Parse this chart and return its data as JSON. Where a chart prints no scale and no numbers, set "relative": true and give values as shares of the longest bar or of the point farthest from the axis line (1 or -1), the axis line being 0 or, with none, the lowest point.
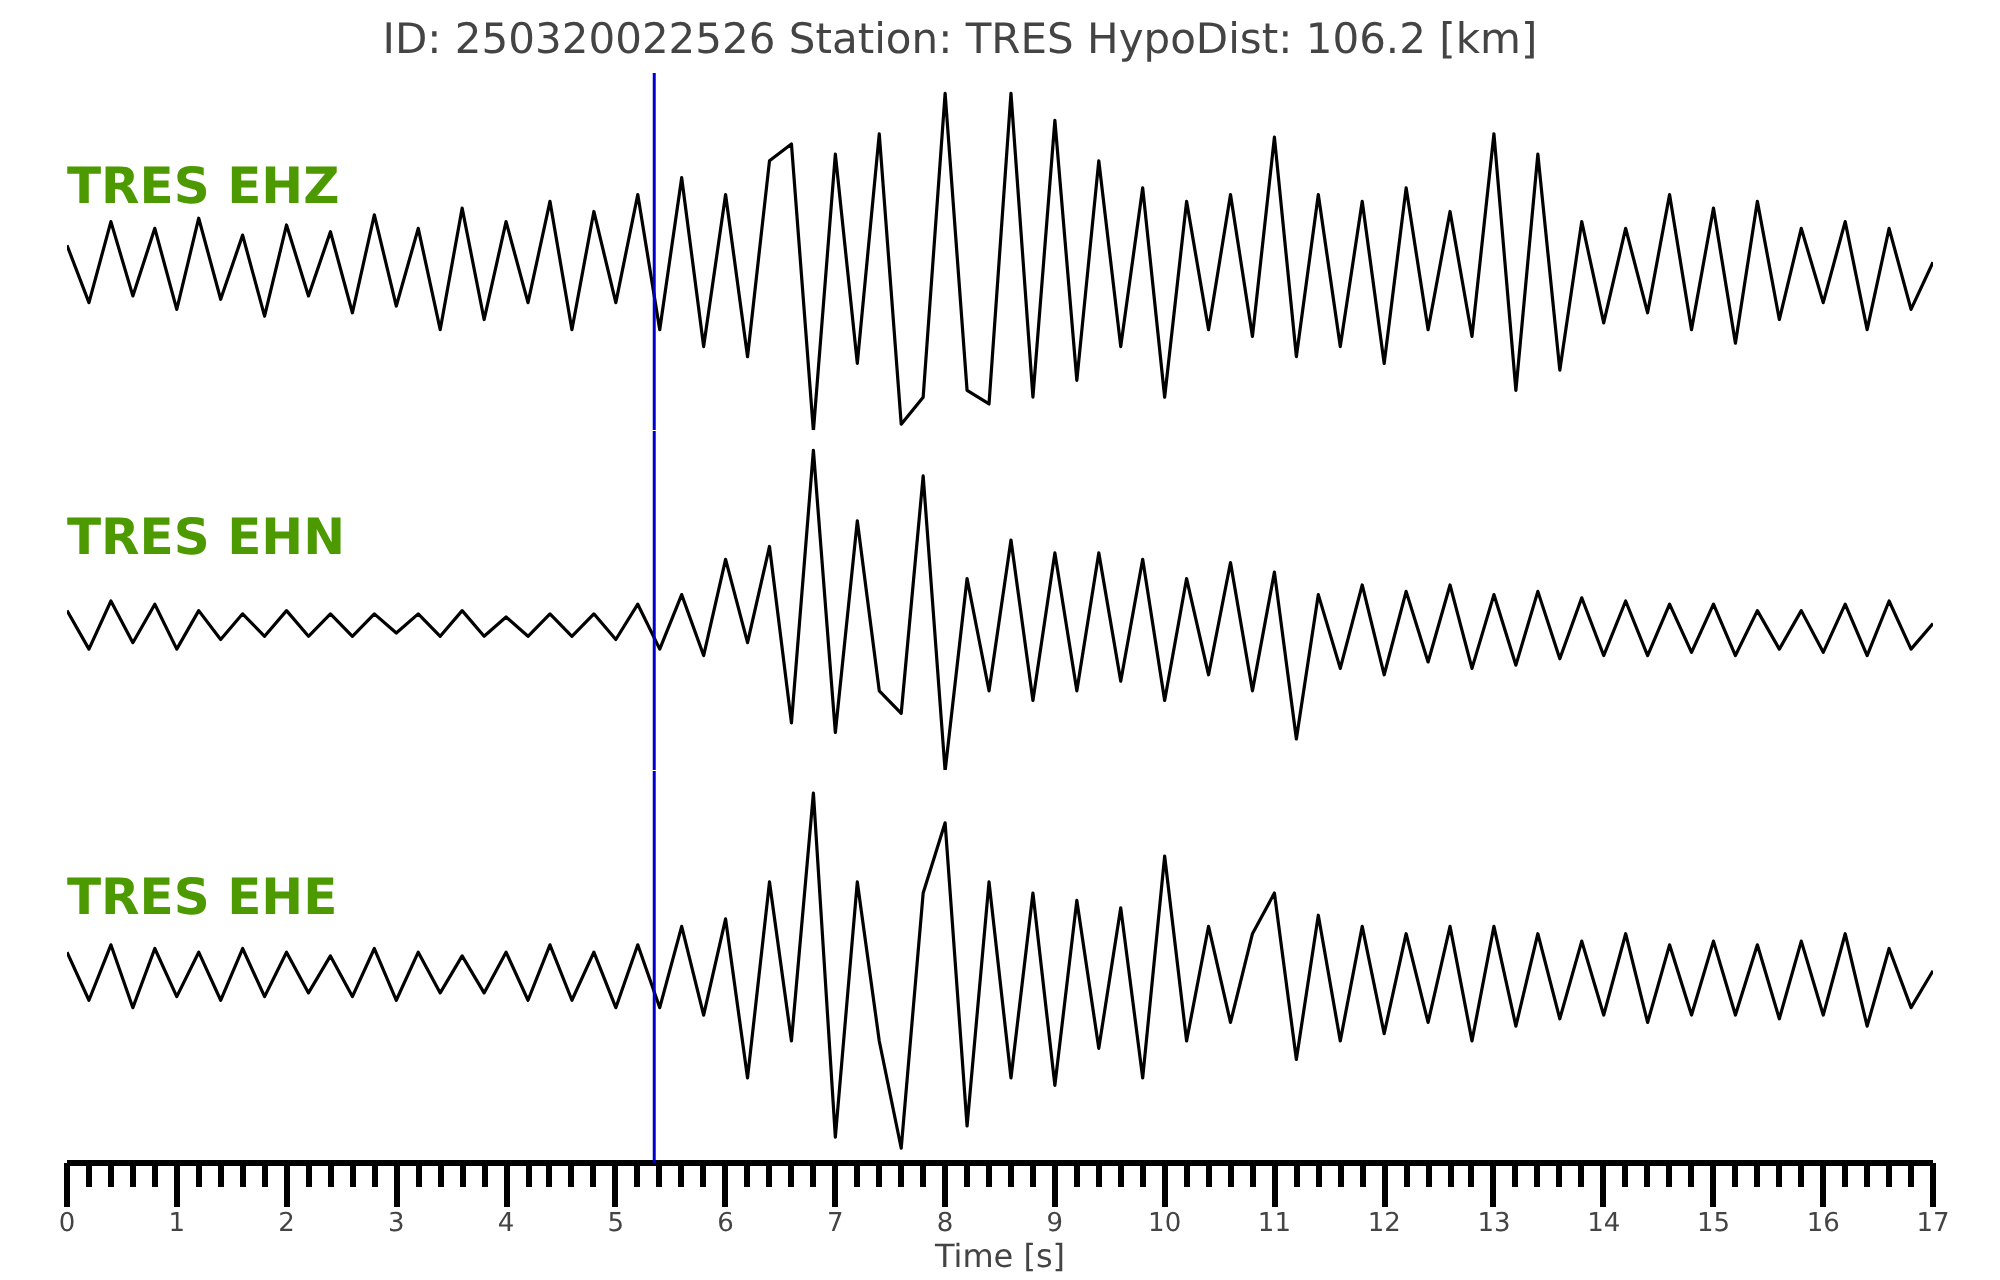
{
  "chart_data": [
    {
      "type": "line",
      "relative": true,
      "title": "ID: 250320022526   Station: TRES   HypoDist:   106.2 [km]",
      "xlim": [
        0,
        17
      ],
      "tick_labels": false,
      "ref_lines": [
        {
          "axis": "x",
          "value": 5.35,
          "color": "#0000cc"
        }
      ],
      "x": [
        0,
        0.2,
        0.4,
        0.6,
        0.8,
        1.0,
        1.2,
        1.4,
        1.6,
        1.8,
        2.0,
        2.2,
        2.4,
        2.6,
        2.8,
        3.0,
        3.2,
        3.4,
        3.6,
        3.8,
        4.0,
        4.2,
        4.4,
        4.6,
        4.8,
        5.0,
        5.2,
        5.4,
        5.6,
        5.8,
        6.0,
        6.2,
        6.4,
        6.6,
        6.8,
        7.0,
        7.2,
        7.4,
        7.6,
        7.8,
        8.0,
        8.2,
        8.4,
        8.6,
        8.8,
        9.0,
        9.2,
        9.4,
        9.6,
        9.8,
        10.0,
        10.2,
        10.4,
        10.6,
        10.8,
        11.0,
        11.2,
        11.4,
        11.6,
        11.8,
        12.0,
        12.2,
        12.4,
        12.6,
        12.8,
        13.0,
        13.2,
        13.4,
        13.6,
        13.8,
        14.0,
        14.2,
        14.4,
        14.6,
        14.8,
        15.0,
        15.2,
        15.4,
        15.6,
        15.8,
        16.0,
        16.2,
        16.4,
        16.6,
        16.8,
        17.0
      ],
      "series": [
        {
          "name": "TRES EHZ",
          "color": "#000000",
          "values": [
            0.55,
            0.38,
            0.62,
            0.4,
            0.6,
            0.36,
            0.63,
            0.39,
            0.58,
            0.34,
            0.61,
            0.4,
            0.59,
            0.35,
            0.64,
            0.37,
            0.6,
            0.3,
            0.66,
            0.33,
            0.62,
            0.38,
            0.68,
            0.3,
            0.65,
            0.38,
            0.7,
            0.3,
            0.75,
            0.25,
            0.7,
            0.22,
            0.8,
            0.85,
            0.0,
            0.82,
            0.2,
            0.88,
            0.02,
            0.1,
            1.0,
            0.12,
            0.08,
            1.0,
            0.1,
            0.92,
            0.15,
            0.8,
            0.25,
            0.72,
            0.1,
            0.68,
            0.3,
            0.7,
            0.28,
            0.87,
            0.22,
            0.7,
            0.25,
            0.68,
            0.2,
            0.72,
            0.3,
            0.65,
            0.28,
            0.88,
            0.12,
            0.82,
            0.18,
            0.62,
            0.32,
            0.6,
            0.35,
            0.7,
            0.3,
            0.66,
            0.26,
            0.68,
            0.33,
            0.6,
            0.38,
            0.62,
            0.3,
            0.6,
            0.36,
            0.5
          ]
        }
      ]
    },
    {
      "type": "line",
      "relative": true,
      "xlim": [
        0,
        17
      ],
      "tick_labels": false,
      "ref_lines": [
        {
          "axis": "x",
          "value": 5.35,
          "color": "#0000cc"
        }
      ],
      "x": [
        0,
        0.2,
        0.4,
        0.6,
        0.8,
        1.0,
        1.2,
        1.4,
        1.6,
        1.8,
        2.0,
        2.2,
        2.4,
        2.6,
        2.8,
        3.0,
        3.2,
        3.4,
        3.6,
        3.8,
        4.0,
        4.2,
        4.4,
        4.6,
        4.8,
        5.0,
        5.2,
        5.4,
        5.6,
        5.8,
        6.0,
        6.2,
        6.4,
        6.6,
        6.8,
        7.0,
        7.2,
        7.4,
        7.6,
        7.8,
        8.0,
        8.2,
        8.4,
        8.6,
        8.8,
        9.0,
        9.2,
        9.4,
        9.6,
        9.8,
        10.0,
        10.2,
        10.4,
        10.6,
        10.8,
        11.0,
        11.2,
        11.4,
        11.6,
        11.8,
        12.0,
        12.2,
        12.4,
        12.6,
        12.8,
        13.0,
        13.2,
        13.4,
        13.6,
        13.8,
        14.0,
        14.2,
        14.4,
        14.6,
        14.8,
        15.0,
        15.2,
        15.4,
        15.6,
        15.8,
        16.0,
        16.2,
        16.4,
        16.6,
        16.8,
        17.0
      ],
      "series": [
        {
          "name": "TRES EHN",
          "color": "#000000",
          "values": [
            0.5,
            0.38,
            0.53,
            0.4,
            0.52,
            0.38,
            0.5,
            0.41,
            0.49,
            0.42,
            0.5,
            0.42,
            0.49,
            0.42,
            0.49,
            0.43,
            0.49,
            0.42,
            0.5,
            0.42,
            0.48,
            0.42,
            0.49,
            0.42,
            0.49,
            0.41,
            0.52,
            0.38,
            0.55,
            0.36,
            0.66,
            0.4,
            0.7,
            0.15,
            1.0,
            0.12,
            0.78,
            0.25,
            0.18,
            0.92,
            0.0,
            0.6,
            0.25,
            0.72,
            0.22,
            0.68,
            0.25,
            0.68,
            0.28,
            0.66,
            0.22,
            0.6,
            0.3,
            0.65,
            0.25,
            0.62,
            0.1,
            0.55,
            0.32,
            0.58,
            0.3,
            0.56,
            0.34,
            0.58,
            0.32,
            0.55,
            0.33,
            0.56,
            0.35,
            0.54,
            0.36,
            0.53,
            0.36,
            0.52,
            0.37,
            0.52,
            0.36,
            0.5,
            0.38,
            0.5,
            0.37,
            0.52,
            0.36,
            0.53,
            0.38,
            0.46
          ]
        }
      ]
    },
    {
      "type": "line",
      "relative": true,
      "xlim": [
        0,
        17
      ],
      "tick_labels": "x",
      "xlabel": "Time [s]",
      "ref_lines": [
        {
          "axis": "x",
          "value": 5.35,
          "color": "#0000cc"
        }
      ],
      "xticks": [
        0,
        {
          "value": 0.2,
          "label": null
        },
        {
          "value": 0.4,
          "label": null
        },
        {
          "value": 0.6,
          "label": null
        },
        {
          "value": 0.8,
          "label": null
        },
        1,
        {
          "value": 1.2,
          "label": null
        },
        {
          "value": 1.4,
          "label": null
        },
        {
          "value": 1.6,
          "label": null
        },
        {
          "value": 1.8,
          "label": null
        },
        2,
        {
          "value": 2.2,
          "label": null
        },
        {
          "value": 2.4,
          "label": null
        },
        {
          "value": 2.6,
          "label": null
        },
        {
          "value": 2.8,
          "label": null
        },
        3,
        {
          "value": 3.2,
          "label": null
        },
        {
          "value": 3.4,
          "label": null
        },
        {
          "value": 3.6,
          "label": null
        },
        {
          "value": 3.8,
          "label": null
        },
        4,
        {
          "value": 4.2,
          "label": null
        },
        {
          "value": 4.4,
          "label": null
        },
        {
          "value": 4.6,
          "label": null
        },
        {
          "value": 4.8,
          "label": null
        },
        5,
        {
          "value": 5.2,
          "label": null
        },
        {
          "value": 5.4,
          "label": null
        },
        {
          "value": 5.6,
          "label": null
        },
        {
          "value": 5.8,
          "label": null
        },
        6,
        {
          "value": 6.2,
          "label": null
        },
        {
          "value": 6.4,
          "label": null
        },
        {
          "value": 6.6,
          "label": null
        },
        {
          "value": 6.8,
          "label": null
        },
        7,
        {
          "value": 7.2,
          "label": null
        },
        {
          "value": 7.4,
          "label": null
        },
        {
          "value": 7.6,
          "label": null
        },
        {
          "value": 7.8,
          "label": null
        },
        8,
        {
          "value": 8.2,
          "label": null
        },
        {
          "value": 8.4,
          "label": null
        },
        {
          "value": 8.6,
          "label": null
        },
        {
          "value": 8.8,
          "label": null
        },
        9,
        {
          "value": 9.2,
          "label": null
        },
        {
          "value": 9.4,
          "label": null
        },
        {
          "value": 9.6,
          "label": null
        },
        {
          "value": 9.8,
          "label": null
        },
        10,
        {
          "value": 10.2,
          "label": null
        },
        {
          "value": 10.4,
          "label": null
        },
        {
          "value": 10.6,
          "label": null
        },
        {
          "value": 10.8,
          "label": null
        },
        11,
        {
          "value": 11.2,
          "label": null
        },
        {
          "value": 11.4,
          "label": null
        },
        {
          "value": 11.6,
          "label": null
        },
        {
          "value": 11.8,
          "label": null
        },
        12,
        {
          "value": 12.2,
          "label": null
        },
        {
          "value": 12.4,
          "label": null
        },
        {
          "value": 12.6,
          "label": null
        },
        {
          "value": 12.8,
          "label": null
        },
        13,
        {
          "value": 13.2,
          "label": null
        },
        {
          "value": 13.4,
          "label": null
        },
        {
          "value": 13.6,
          "label": null
        },
        {
          "value": 13.8,
          "label": null
        },
        14,
        {
          "value": 14.2,
          "label": null
        },
        {
          "value": 14.4,
          "label": null
        },
        {
          "value": 14.6,
          "label": null
        },
        {
          "value": 14.8,
          "label": null
        },
        15,
        {
          "value": 15.2,
          "label": null
        },
        {
          "value": 15.4,
          "label": null
        },
        {
          "value": 15.6,
          "label": null
        },
        {
          "value": 15.8,
          "label": null
        },
        16,
        {
          "value": 16.2,
          "label": null
        },
        {
          "value": 16.4,
          "label": null
        },
        {
          "value": 16.6,
          "label": null
        },
        {
          "value": 16.8,
          "label": null
        },
        17
      ],
      "x": [
        0,
        0.2,
        0.4,
        0.6,
        0.8,
        1.0,
        1.2,
        1.4,
        1.6,
        1.8,
        2.0,
        2.2,
        2.4,
        2.6,
        2.8,
        3.0,
        3.2,
        3.4,
        3.6,
        3.8,
        4.0,
        4.2,
        4.4,
        4.6,
        4.8,
        5.0,
        5.2,
        5.4,
        5.6,
        5.8,
        6.0,
        6.2,
        6.4,
        6.6,
        6.8,
        7.0,
        7.2,
        7.4,
        7.6,
        7.8,
        8.0,
        8.2,
        8.4,
        8.6,
        8.8,
        9.0,
        9.2,
        9.4,
        9.6,
        9.8,
        10.0,
        10.2,
        10.4,
        10.6,
        10.8,
        11.0,
        11.2,
        11.4,
        11.6,
        11.8,
        12.0,
        12.2,
        12.4,
        12.6,
        12.8,
        13.0,
        13.2,
        13.4,
        13.6,
        13.8,
        14.0,
        14.2,
        14.4,
        14.6,
        14.8,
        15.0,
        15.2,
        15.4,
        15.6,
        15.8,
        16.0,
        16.2,
        16.4,
        16.6,
        16.8,
        17.0
      ],
      "series": [
        {
          "name": "TRES EHE",
          "color": "#000000",
          "values": [
            0.57,
            0.44,
            0.59,
            0.42,
            0.58,
            0.45,
            0.57,
            0.44,
            0.58,
            0.45,
            0.57,
            0.46,
            0.56,
            0.45,
            0.58,
            0.44,
            0.57,
            0.46,
            0.56,
            0.46,
            0.57,
            0.44,
            0.59,
            0.44,
            0.57,
            0.42,
            0.59,
            0.42,
            0.64,
            0.4,
            0.66,
            0.23,
            0.76,
            0.33,
            1.0,
            0.07,
            0.76,
            0.33,
            0.04,
            0.73,
            0.92,
            0.1,
            0.76,
            0.23,
            0.73,
            0.21,
            0.71,
            0.31,
            0.69,
            0.23,
            0.83,
            0.33,
            0.64,
            0.38,
            0.62,
            0.73,
            0.28,
            0.67,
            0.33,
            0.64,
            0.35,
            0.62,
            0.38,
            0.64,
            0.33,
            0.64,
            0.37,
            0.62,
            0.39,
            0.6,
            0.4,
            0.62,
            0.38,
            0.59,
            0.4,
            0.6,
            0.4,
            0.59,
            0.39,
            0.6,
            0.4,
            0.62,
            0.37,
            0.58,
            0.42,
            0.52
          ]
        }
      ]
    }
  ]
}
